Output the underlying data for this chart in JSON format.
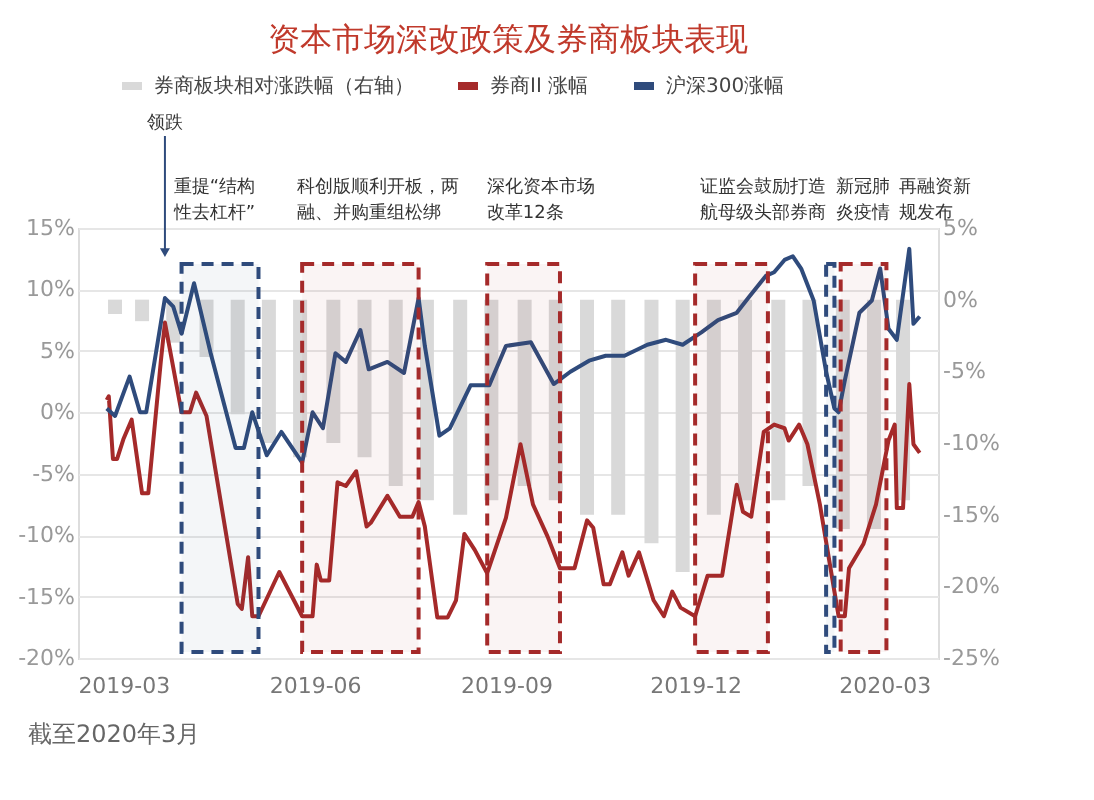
{
  "chart_data": {
    "type": "line",
    "title": "资本市场深改政策及券商板块表现",
    "annotations": [
      {
        "text": "领跌",
        "x": "2019-03-21",
        "y": 13
      },
      "截至2020年3月"
    ],
    "legend": "top",
    "grid": "y",
    "xlim": [
      "2019-02-12",
      "2020-03-22"
    ],
    "xticks": [
      {
        "value": "2019-03",
        "label": "2019-03"
      },
      {
        "value": "2019-06",
        "label": "2019-06"
      },
      {
        "value": "2019-09",
        "label": "2019-09"
      },
      {
        "value": "2019-12",
        "label": "2019-12"
      },
      {
        "value": "2020-03",
        "label": "2020-03"
      }
    ],
    "ylim": [
      -20,
      15
    ],
    "yticks": [
      {
        "value": -20,
        "label": "-20%"
      },
      {
        "value": -15,
        "label": "-15%"
      },
      {
        "value": -10,
        "label": "-10%"
      },
      {
        "value": -5,
        "label": "-5%"
      },
      {
        "value": 0,
        "label": "0%"
      },
      {
        "value": 5,
        "label": "5%"
      },
      {
        "value": 10,
        "label": "10%"
      },
      {
        "value": 15,
        "label": "15%"
      }
    ],
    "y2lim": [
      -25,
      5
    ],
    "y2ticks": [
      {
        "value": -25,
        "label": "-25%"
      },
      {
        "value": -20,
        "label": "-20%"
      },
      {
        "value": -15,
        "label": "-15%"
      },
      {
        "value": -10,
        "label": "-10%"
      },
      {
        "value": -5,
        "label": "-5%"
      },
      {
        "value": 0,
        "label": "0%"
      },
      {
        "value": 5,
        "label": "5%"
      }
    ],
    "series": [
      {
        "name": "券商板块相对涨跌幅（右轴）",
        "type": "bar",
        "axis": "y2",
        "color": "#d9d9d9",
        "x": [
          "2019-02-25",
          "2019-03-10",
          "2019-03-25",
          "2019-04-10",
          "2019-04-25",
          "2019-05-10",
          "2019-05-25",
          "2019-06-10",
          "2019-06-25",
          "2019-07-10",
          "2019-07-25",
          "2019-08-10",
          "2019-08-25",
          "2019-09-10",
          "2019-09-25",
          "2019-10-10",
          "2019-10-25",
          "2019-11-10",
          "2019-11-25",
          "2019-12-10",
          "2019-12-25",
          "2020-01-10",
          "2020-01-25",
          "2020-02-10",
          "2020-02-25",
          "2020-03-10"
        ],
        "values": [
          -1,
          -1.5,
          -3,
          -4,
          -8,
          -10,
          -11,
          -10,
          -11,
          -13,
          -14,
          -15,
          -14,
          -13,
          -14,
          -15,
          -15,
          -17,
          -19,
          -15,
          -14,
          -14,
          -13,
          -16,
          -16,
          -14
        ]
      },
      {
        "name": "券商II 涨幅",
        "color": "#a52a2a",
        "x": [
          "2019-02-21",
          "2019-02-22",
          "2019-02-24",
          "2019-02-26",
          "2019-03-01",
          "2019-03-05",
          "2019-03-10",
          "2019-03-13",
          "2019-03-19",
          "2019-03-21",
          "2019-03-29",
          "2019-04-02",
          "2019-04-05",
          "2019-04-10",
          "2019-04-25",
          "2019-04-27",
          "2019-04-30",
          "2019-05-02",
          "2019-05-05",
          "2019-05-15",
          "2019-05-26",
          "2019-05-31",
          "2019-06-02",
          "2019-06-04",
          "2019-06-08",
          "2019-06-12",
          "2019-06-16",
          "2019-06-21",
          "2019-06-26",
          "2019-06-28",
          "2019-07-06",
          "2019-07-12",
          "2019-07-18",
          "2019-07-21",
          "2019-07-24",
          "2019-07-30",
          "2019-08-04",
          "2019-08-08",
          "2019-08-12",
          "2019-08-17",
          "2019-08-23",
          "2019-09-01",
          "2019-09-08",
          "2019-09-14",
          "2019-09-21",
          "2019-09-27",
          "2019-10-04",
          "2019-10-10",
          "2019-10-13",
          "2019-10-18",
          "2019-10-21",
          "2019-10-27",
          "2019-10-30",
          "2019-11-04",
          "2019-11-11",
          "2019-11-16",
          "2019-11-20",
          "2019-11-24",
          "2019-12-01",
          "2019-12-07",
          "2019-12-14",
          "2019-12-21",
          "2019-12-24",
          "2019-12-28",
          "2020-01-03",
          "2020-01-08",
          "2020-01-13",
          "2020-01-15",
          "2020-01-20",
          "2020-01-24",
          "2020-01-30",
          "2020-02-06",
          "2020-02-08",
          "2020-02-11",
          "2020-02-13",
          "2020-02-20",
          "2020-02-26",
          "2020-03-03",
          "2020-03-06",
          "2020-03-07",
          "2020-03-10",
          "2020-03-13",
          "2020-03-15",
          "2020-03-18"
        ],
        "values": [
          1,
          1.3,
          -3.8,
          -3.8,
          -2.2,
          -0.6,
          -6.6,
          -6.6,
          4.1,
          7.3,
          0,
          0,
          1.6,
          -0.3,
          -15.6,
          -16,
          -11.8,
          -16.6,
          -16.6,
          -13,
          -16.6,
          -16.6,
          -12.4,
          -13.7,
          -13.7,
          -5.7,
          -6,
          -4.8,
          -9.3,
          -9,
          -6.8,
          -8.5,
          -8.5,
          -7.3,
          -9.3,
          -16.7,
          -16.7,
          -15.3,
          -9.9,
          -11.2,
          -13.1,
          -8.6,
          -2.6,
          -7.5,
          -10.1,
          -12.7,
          -12.7,
          -8.8,
          -9.4,
          -14,
          -14,
          -11.4,
          -13.3,
          -11.4,
          -15.3,
          -16.6,
          -14.6,
          -15.9,
          -16.6,
          -13.3,
          -13.3,
          -5.9,
          -8.1,
          -8.5,
          -1.6,
          -1,
          -1.3,
          -2.3,
          -1,
          -2.6,
          -7.5,
          -14.6,
          -16.6,
          -16.6,
          -12.7,
          -10.7,
          -7.5,
          -2.3,
          -1,
          -7.8,
          -7.8,
          2.3,
          -2.6,
          -3.3
        ]
      },
      {
        "name": "沪深300涨幅",
        "color": "#2f4b7c",
        "x": [
          "2019-02-21",
          "2019-02-25",
          "2019-03-04",
          "2019-03-09",
          "2019-03-12",
          "2019-03-21",
          "2019-03-25",
          "2019-03-29",
          "2019-04-04",
          "2019-04-12",
          "2019-04-24",
          "2019-04-28",
          "2019-05-02",
          "2019-05-09",
          "2019-05-16",
          "2019-05-26",
          "2019-05-31",
          "2019-06-05",
          "2019-06-11",
          "2019-06-16",
          "2019-06-23",
          "2019-06-27",
          "2019-07-06",
          "2019-07-14",
          "2019-07-21",
          "2019-07-24",
          "2019-07-31",
          "2019-08-05",
          "2019-08-15",
          "2019-08-24",
          "2019-09-01",
          "2019-09-13",
          "2019-09-24",
          "2019-10-02",
          "2019-10-11",
          "2019-10-19",
          "2019-10-28",
          "2019-11-08",
          "2019-11-17",
          "2019-11-25",
          "2019-12-04",
          "2019-12-12",
          "2019-12-21",
          "2019-12-27",
          "2020-01-04",
          "2020-01-08",
          "2020-01-13",
          "2020-01-17",
          "2020-01-21",
          "2020-01-27",
          "2020-02-02",
          "2020-02-06",
          "2020-02-08",
          "2020-02-11",
          "2020-02-18",
          "2020-02-24",
          "2020-02-28",
          "2020-03-03",
          "2020-03-07",
          "2020-03-13",
          "2020-03-15",
          "2020-03-18"
        ],
        "values": [
          0.3,
          -0.3,
          2.9,
          0,
          0,
          9.3,
          8.6,
          6.4,
          10.5,
          4.8,
          -2.9,
          -2.9,
          0,
          -3.5,
          -1.6,
          -4.1,
          0,
          -1.3,
          4.8,
          4.1,
          6.7,
          3.5,
          4.1,
          3.2,
          9.3,
          5.4,
          -1.9,
          -1.3,
          2.2,
          2.2,
          5.4,
          5.7,
          2.3,
          3.3,
          4.2,
          4.6,
          4.6,
          5.5,
          5.9,
          5.5,
          6.5,
          7.5,
          8.1,
          9.4,
          11.1,
          11.4,
          12.4,
          12.7,
          11.7,
          9.1,
          3.3,
          0.3,
          0,
          2.6,
          8.1,
          9.1,
          11.7,
          6.8,
          5.9,
          13.3,
          7.2,
          7.8
        ]
      }
    ],
    "bands": [
      {
        "axis": "x",
        "from": "2019-03-29",
        "to": "2019-05-05",
        "label": "重提“结构性去杠杆”",
        "color": "#2f4b7c"
      },
      {
        "axis": "x",
        "from": "2019-05-26",
        "to": "2019-07-21",
        "label": "科创版顺利开板，两融、并购重组松绑",
        "color": "#a52a2a"
      },
      {
        "axis": "x",
        "from": "2019-08-23",
        "to": "2019-09-27",
        "label": "深化资本市场改革12条",
        "color": "#a52a2a"
      },
      {
        "axis": "x",
        "from": "2019-12-01",
        "to": "2020-01-05",
        "label": "证监会鼓励打造航母级头部券商",
        "color": "#a52a2a"
      },
      {
        "axis": "x",
        "from": "2020-02-02",
        "to": "2020-02-06",
        "label": "新冠肺炎疫情",
        "color": "#2f4b7c"
      },
      {
        "axis": "x",
        "from": "2020-02-09",
        "to": "2020-03-02",
        "label": "再融资新规发布",
        "color": "#a52a2a"
      }
    ]
  }
}
